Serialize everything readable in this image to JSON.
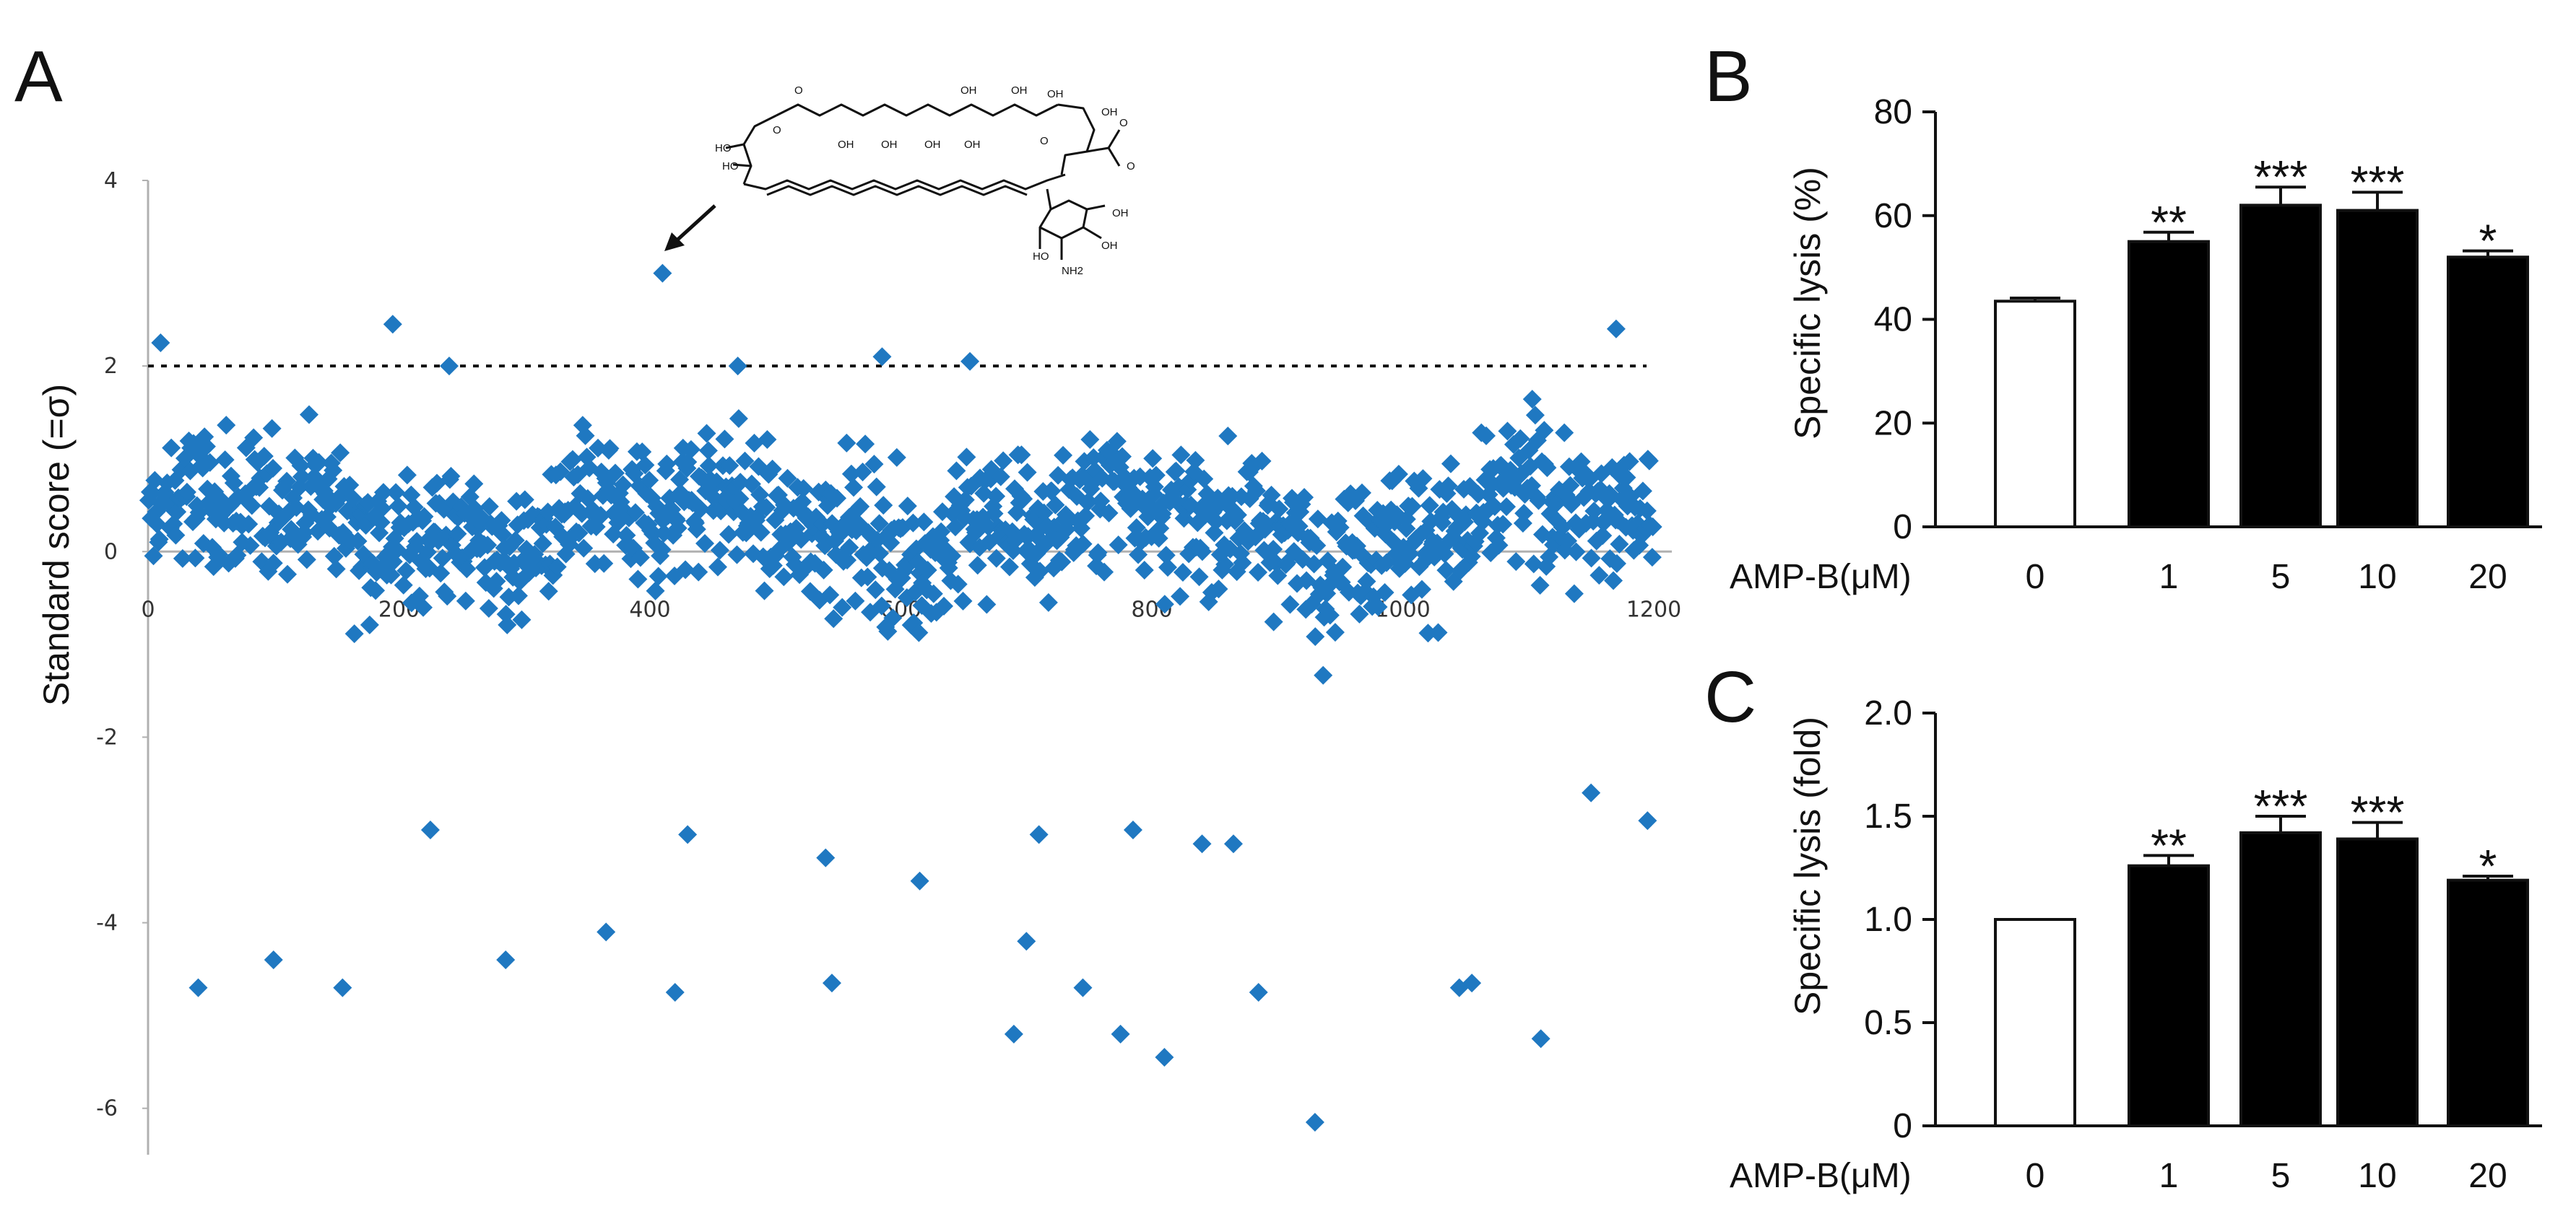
{
  "panels": {
    "a": "A",
    "b": "B",
    "c": "C"
  },
  "colors": {
    "marker": "#1f78c1",
    "axisA": "#b0b0b0",
    "ink": "#111111",
    "control": "#ffffff",
    "treated": "#000000"
  },
  "chart_data": [
    {
      "id": "A",
      "type": "scatter",
      "title": "",
      "xlabel": "",
      "ylabel": "Standard score (=σ)",
      "xlim": [
        0,
        1200
      ],
      "ylim": [
        -6.5,
        4
      ],
      "xticks": [
        "0",
        "200",
        "400",
        "600",
        "800",
        "1000",
        "1200"
      ],
      "yticks": [
        "4",
        "2",
        "0",
        "-2",
        "-4",
        "-6"
      ],
      "threshold": 2,
      "marker": "diamond",
      "annotation": "arrow pointing to amphotericin B structure (highest hit, x≈410, y≈3.0)",
      "highlight_point": {
        "x": 410,
        "y": 3.0
      },
      "notable_points": [
        {
          "x": 10,
          "y": 2.25
        },
        {
          "x": 195,
          "y": 2.45
        },
        {
          "x": 240,
          "y": 2.0
        },
        {
          "x": 585,
          "y": 2.1
        },
        {
          "x": 655,
          "y": 2.05
        },
        {
          "x": 1170,
          "y": 2.4
        },
        {
          "x": 470,
          "y": 2.0
        },
        {
          "x": 40,
          "y": -4.7
        },
        {
          "x": 100,
          "y": -4.4
        },
        {
          "x": 155,
          "y": -4.7
        },
        {
          "x": 285,
          "y": -4.4
        },
        {
          "x": 365,
          "y": -4.1
        },
        {
          "x": 420,
          "y": -4.75
        },
        {
          "x": 545,
          "y": -4.65
        },
        {
          "x": 700,
          "y": -4.2
        },
        {
          "x": 745,
          "y": -4.7
        },
        {
          "x": 690,
          "y": -5.2
        },
        {
          "x": 775,
          "y": -5.2
        },
        {
          "x": 810,
          "y": -5.45
        },
        {
          "x": 885,
          "y": -4.75
        },
        {
          "x": 930,
          "y": -6.15
        },
        {
          "x": 1045,
          "y": -4.7
        },
        {
          "x": 1055,
          "y": -4.65
        },
        {
          "x": 1110,
          "y": -5.25
        },
        {
          "x": 225,
          "y": -3.0
        },
        {
          "x": 430,
          "y": -3.05
        },
        {
          "x": 540,
          "y": -3.3
        },
        {
          "x": 615,
          "y": -3.55
        },
        {
          "x": 710,
          "y": -3.05
        },
        {
          "x": 785,
          "y": -3.0
        },
        {
          "x": 840,
          "y": -3.15
        },
        {
          "x": 865,
          "y": -3.15
        },
        {
          "x": 1150,
          "y": -2.6
        },
        {
          "x": 1195,
          "y": -2.9
        }
      ],
      "points_note": "About 1200 compounds; central band of points spans roughly -1.5 to 1.5."
    },
    {
      "id": "B",
      "type": "bar",
      "ylabel": "Specific lysis (%)",
      "xlabel_prefix": "AMP-B(μM)",
      "categories": [
        "0",
        "1",
        "5",
        "10",
        "20"
      ],
      "values": [
        43.5,
        55,
        62,
        61,
        52
      ],
      "errors": [
        0.6,
        1.8,
        3.5,
        3.5,
        1.2
      ],
      "significance": [
        "",
        "**",
        "***",
        "***",
        "*"
      ],
      "ylim": [
        0,
        80
      ],
      "yticks": [
        "0",
        "20",
        "40",
        "60",
        "80"
      ],
      "fill": [
        "white",
        "black",
        "black",
        "black",
        "black"
      ]
    },
    {
      "id": "C",
      "type": "bar",
      "ylabel": "Specific lysis (fold)",
      "xlabel_prefix": "AMP-B(μM)",
      "categories": [
        "0",
        "1",
        "5",
        "10",
        "20"
      ],
      "values": [
        1.0,
        1.26,
        1.42,
        1.39,
        1.19
      ],
      "errors": [
        0.0,
        0.05,
        0.08,
        0.08,
        0.02
      ],
      "significance": [
        "",
        "**",
        "***",
        "***",
        "*"
      ],
      "ylim": [
        0,
        2.0
      ],
      "yticks": [
        "0",
        "0.5",
        "1.0",
        "1.5",
        "2.0"
      ],
      "fill": [
        "white",
        "black",
        "black",
        "black",
        "black"
      ]
    }
  ],
  "chemistry": {
    "labels": [
      "O",
      "O",
      "OH",
      "OH",
      "OH",
      "OH",
      "OH",
      "OH",
      "OH",
      "O",
      "OH",
      "HO",
      "HO",
      "O",
      "O",
      "OH",
      "OH",
      "HO",
      "NH2"
    ]
  }
}
